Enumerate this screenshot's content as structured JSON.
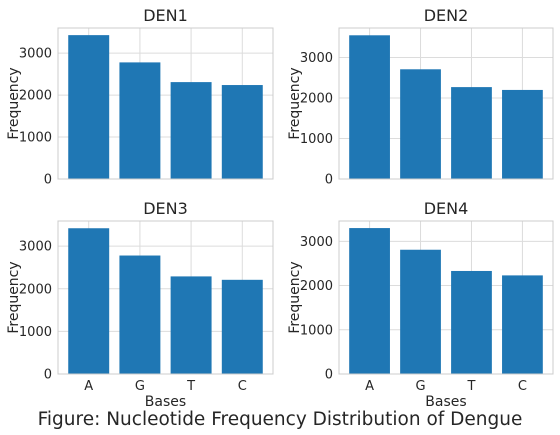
{
  "figure_title": "Figure: Nucleotide Frequency Distribution of Dengue",
  "bar_color": "#1f77b4",
  "chart_data": [
    {
      "type": "bar",
      "title": "DEN1",
      "categories": [
        "A",
        "G",
        "T",
        "C"
      ],
      "values": [
        3430,
        2780,
        2310,
        2240
      ],
      "xlabel": "",
      "ylabel": "Frequency",
      "ylim": [
        0,
        3600
      ],
      "yticks": [
        0,
        1000,
        2000,
        3000
      ],
      "show_xticklabels": false,
      "grid": true
    },
    {
      "type": "bar",
      "title": "DEN2",
      "categories": [
        "A",
        "G",
        "T",
        "C"
      ],
      "values": [
        3550,
        2710,
        2270,
        2200
      ],
      "xlabel": "",
      "ylabel": "Frequency",
      "ylim": [
        0,
        3730
      ],
      "yticks": [
        0,
        1000,
        2000,
        3000
      ],
      "show_xticklabels": false,
      "grid": true
    },
    {
      "type": "bar",
      "title": "DEN3",
      "categories": [
        "A",
        "G",
        "T",
        "C"
      ],
      "values": [
        3420,
        2780,
        2290,
        2210
      ],
      "xlabel": "Bases",
      "ylabel": "Frequency",
      "ylim": [
        0,
        3590
      ],
      "yticks": [
        0,
        1000,
        2000,
        3000
      ],
      "show_xticklabels": true,
      "grid": true
    },
    {
      "type": "bar",
      "title": "DEN4",
      "categories": [
        "A",
        "G",
        "T",
        "C"
      ],
      "values": [
        3300,
        2810,
        2330,
        2230
      ],
      "xlabel": "Bases",
      "ylabel": "Frequency",
      "ylim": [
        0,
        3460
      ],
      "yticks": [
        0,
        1000,
        2000,
        3000
      ],
      "show_xticklabels": true,
      "grid": true
    }
  ]
}
